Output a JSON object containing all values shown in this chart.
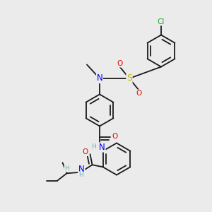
{
  "bg_color": "#ebebeb",
  "bond_color": "#1a1a1a",
  "bond_width": 1.3,
  "atom_colors": {
    "C": "#1a1a1a",
    "H": "#66b2b2",
    "N": "#0000ee",
    "O": "#ee0000",
    "S": "#bbbb00",
    "Cl": "#22aa22"
  },
  "font_size": 7.5,
  "fig_width": 3.0,
  "fig_height": 3.0,
  "dpi": 100
}
